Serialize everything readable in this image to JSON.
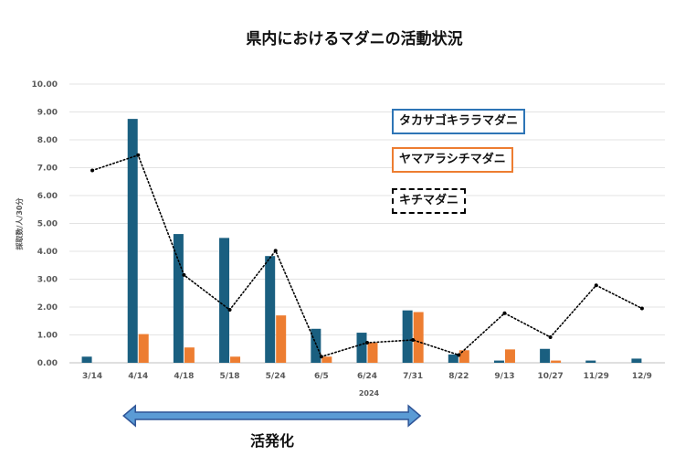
{
  "chart_data": {
    "type": "bar",
    "title": "県内におけるマダニの活動状況",
    "xlabel": "2024",
    "ylabel": "採取数/人/30分",
    "ylim": [
      0,
      10
    ],
    "yticks": [
      "0.00",
      "1.00",
      "2.00",
      "3.00",
      "4.00",
      "5.00",
      "6.00",
      "7.00",
      "8.00",
      "9.00",
      "10.00"
    ],
    "categories": [
      "3/14",
      "4/14",
      "4/18",
      "5/18",
      "5/24",
      "6/5",
      "6/24",
      "7/31",
      "8/22",
      "9/13",
      "10/27",
      "11/29",
      "12/9"
    ],
    "series": [
      {
        "name": "タカサゴキララマダニ",
        "kind": "bar",
        "color": "#1a5f80",
        "values": [
          0.22,
          8.75,
          4.62,
          4.48,
          3.83,
          1.22,
          1.08,
          1.88,
          0.3,
          0.08,
          0.5,
          0.08,
          0.15
        ]
      },
      {
        "name": "ヤマアラシチマダニ",
        "kind": "bar",
        "color": "#ed7d31",
        "values": [
          0,
          1.03,
          0.55,
          0.22,
          1.7,
          0.22,
          0.72,
          1.82,
          0.45,
          0.48,
          0.08,
          0,
          0
        ]
      },
      {
        "name": "キチマダニ",
        "kind": "dotted-line",
        "color": "#000000",
        "values": [
          6.9,
          7.45,
          3.15,
          1.9,
          4.02,
          0.22,
          0.72,
          0.82,
          0.28,
          1.78,
          0.92,
          2.78,
          1.95
        ]
      }
    ],
    "grid": true,
    "legend": "top-right"
  },
  "annotation": {
    "label": "活発化",
    "from": "4/14",
    "to": "7/31",
    "arrow_color": "#5b9bd5"
  }
}
